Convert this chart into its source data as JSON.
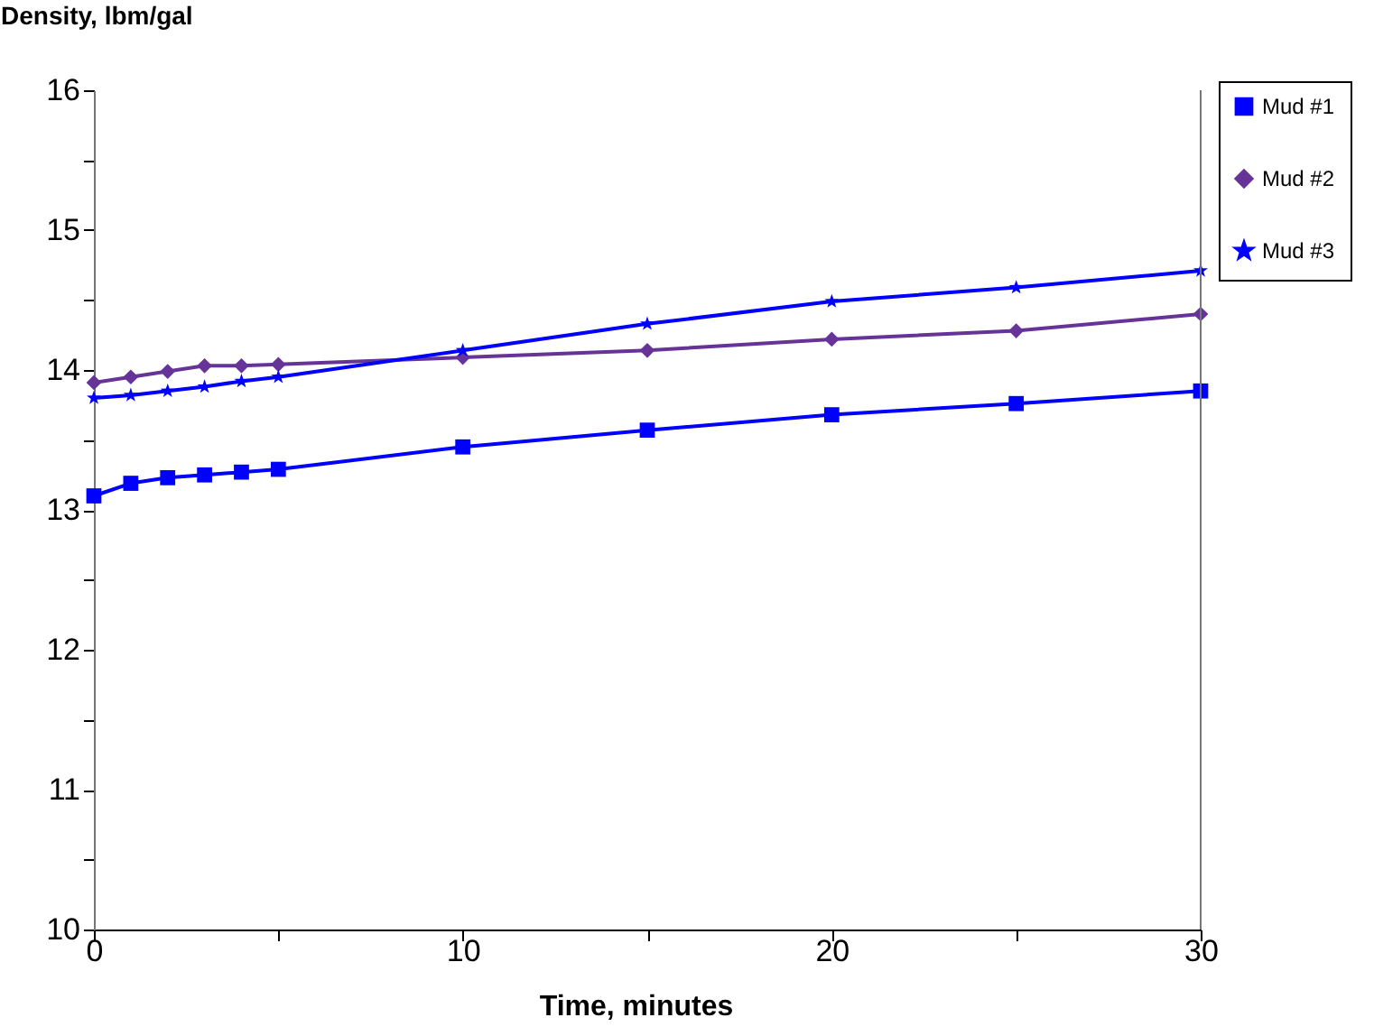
{
  "chart_data": {
    "type": "line",
    "xlabel": "Time, minutes",
    "ylabel": "Density, lbm/gal",
    "x": [
      0,
      1,
      2,
      3,
      4,
      5,
      10,
      15,
      20,
      25,
      30
    ],
    "series": [
      {
        "name": "Mud #1",
        "color": "#0000ff",
        "marker": "square",
        "values": [
          13.1,
          13.19,
          13.23,
          13.25,
          13.27,
          13.29,
          13.45,
          13.57,
          13.68,
          13.76,
          13.85
        ]
      },
      {
        "name": "Mud #2",
        "color": "#663399",
        "marker": "diamond",
        "values": [
          13.91,
          13.95,
          13.99,
          14.03,
          14.03,
          14.04,
          14.09,
          14.14,
          14.22,
          14.28,
          14.4
        ]
      },
      {
        "name": "Mud #3",
        "color": "#0000ff",
        "marker": "star",
        "values": [
          13.8,
          13.82,
          13.85,
          13.88,
          13.92,
          13.95,
          14.14,
          14.33,
          14.49,
          14.59,
          14.71
        ]
      }
    ],
    "xlim": [
      0,
      30
    ],
    "xticks": [
      0,
      {
        "value": 5,
        "label": null
      },
      10,
      {
        "value": 15,
        "label": null
      },
      20,
      {
        "value": 25,
        "label": null
      },
      30
    ],
    "ylim": [
      10,
      16
    ],
    "yticks": [
      10,
      {
        "value": 10.5,
        "label": null
      },
      11,
      {
        "value": 11.5,
        "label": null
      },
      12,
      {
        "value": 12.5,
        "label": null
      },
      13,
      {
        "value": 13.5,
        "label": null
      },
      14,
      {
        "value": 14.5,
        "label": null
      },
      15,
      {
        "value": 15.5,
        "label": null
      },
      16
    ],
    "legend": "top right",
    "grid": false,
    "line_style": "solid"
  }
}
